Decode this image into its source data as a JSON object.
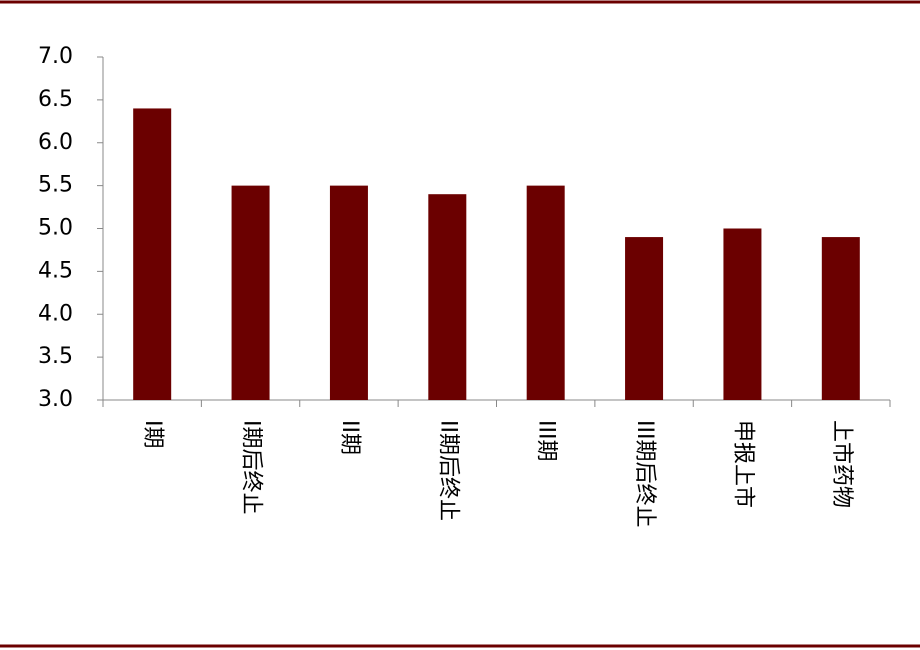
{
  "chart_data": {
    "type": "bar",
    "categories": [
      "I期",
      "I期后终止",
      "II期",
      "II期后终止",
      "III期",
      "III期后终止",
      "申报上市",
      "上市药物"
    ],
    "values": [
      6.4,
      5.5,
      5.5,
      5.4,
      5.5,
      4.9,
      5.0,
      4.9
    ],
    "color": "#6b0000",
    "ylim": [
      3.0,
      7.0
    ],
    "yticks": [
      {
        "value": 3,
        "label": "3.0"
      },
      3.5,
      {
        "value": 4,
        "label": "4.0"
      },
      4.5,
      {
        "value": 5,
        "label": "5.0"
      },
      5.5,
      {
        "value": 6,
        "label": "6.0"
      },
      6.5,
      {
        "value": 7,
        "label": "7.0"
      }
    ]
  }
}
